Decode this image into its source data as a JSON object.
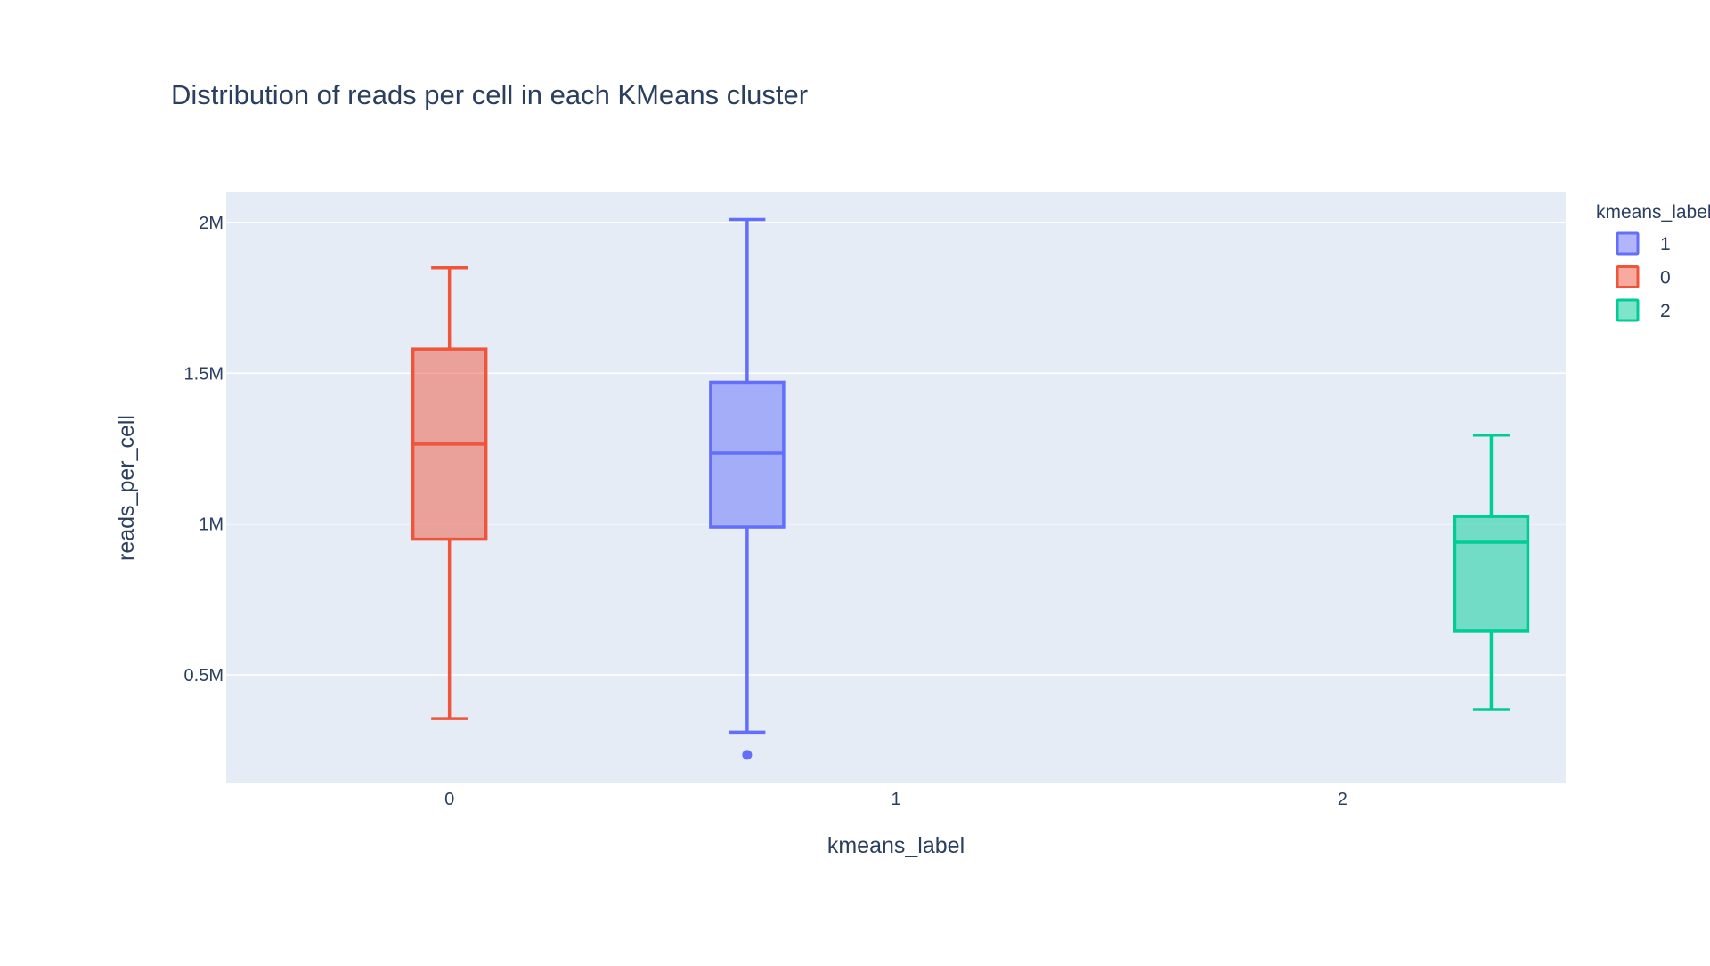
{
  "chart_data": {
    "type": "box",
    "title": "Distribution of reads per cell in each KMeans cluster",
    "xlabel": "kmeans_label",
    "ylabel": "reads_per_cell",
    "x_categories": [
      "0",
      "1",
      "2"
    ],
    "y_ticks": [
      {
        "value": 500000,
        "label": "0.5M"
      },
      {
        "value": 1000000,
        "label": "1M"
      },
      {
        "value": 1500000,
        "label": "1.5M"
      },
      {
        "value": 2000000,
        "label": "2M"
      }
    ],
    "ylim": [
      140000,
      2100000
    ],
    "grid": true,
    "legend": {
      "title": "kmeans_label",
      "placement": "top-right"
    },
    "series": [
      {
        "name": "1",
        "category": "1",
        "color": "#636efa",
        "min": 310000,
        "q1": 990000,
        "median": 1235000,
        "q3": 1470000,
        "max": 2010000,
        "outliers": [
          235000
        ]
      },
      {
        "name": "0",
        "category": "0",
        "color": "#ef553b",
        "min": 355000,
        "q1": 950000,
        "median": 1265000,
        "q3": 1580000,
        "max": 1850000,
        "outliers": []
      },
      {
        "name": "2",
        "category": "2",
        "color": "#00cc96",
        "min": 385000,
        "q1": 645000,
        "median": 940000,
        "q3": 1025000,
        "max": 1295000,
        "outliers": []
      }
    ]
  }
}
